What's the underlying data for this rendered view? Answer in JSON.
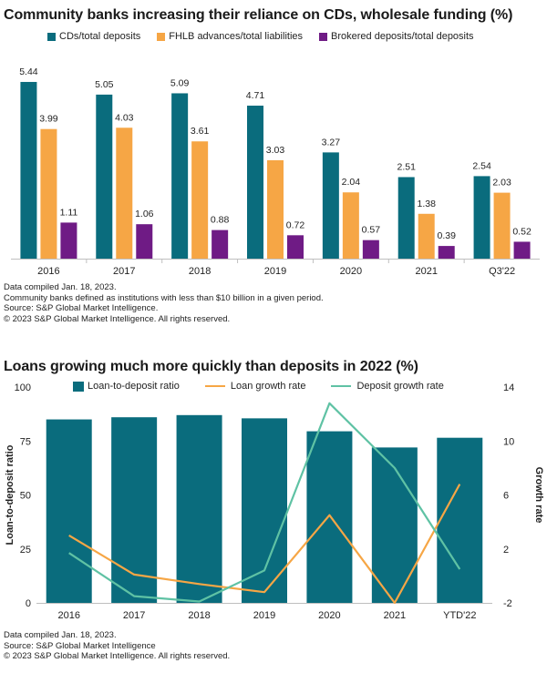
{
  "colors": {
    "teal": "#0a6c7d",
    "orange": "#f6a645",
    "purple": "#6f1b85",
    "green": "#5fc2a4",
    "axis": "#bfbfbf",
    "text": "#222222"
  },
  "chart1": {
    "title": "Community banks increasing their reliance on CDs, wholesale funding (%)",
    "legend": [
      "CDs/total deposits",
      "FHLB advances/total liabilities",
      "Brokered deposits/total deposits"
    ],
    "notes": [
      "Data compiled Jan. 18, 2023.",
      "Community banks defined as institutions with less than $10 billion in a given period.",
      "Source: S&P Global Market Intelligence.",
      "© 2023 S&P Global Market Intelligence. All rights reserved."
    ]
  },
  "chart2": {
    "title": "Loans growing much more quickly than deposits in 2022 (%)",
    "legend": [
      "Loan-to-deposit ratio",
      "Loan growth rate",
      "Deposit growth rate"
    ],
    "notes": [
      "Data compiled Jan. 18, 2023.",
      "Source: S&P Global Market Intelligence",
      "© 2023 S&P Global Market Intelligence. All rights reserved."
    ]
  },
  "chart_data": [
    {
      "type": "bar",
      "title": "Community banks increasing their reliance on CDs, wholesale funding (%)",
      "categories": [
        "2016",
        "2017",
        "2018",
        "2019",
        "2020",
        "2021",
        "Q3'22"
      ],
      "series": [
        {
          "name": "CDs/total deposits",
          "values": [
            5.44,
            5.05,
            5.09,
            4.71,
            3.27,
            2.51,
            2.54
          ],
          "labels": [
            "5.44",
            "5.05",
            "5.09",
            "4.71",
            "3.27",
            "2.51",
            "2.54"
          ]
        },
        {
          "name": "FHLB advances/total liabilities",
          "values": [
            3.99,
            4.03,
            3.61,
            3.03,
            2.04,
            1.38,
            2.03
          ],
          "labels": [
            "3.99",
            "4.03",
            "3.61",
            "3.03",
            "2.04",
            "1.38",
            "2.03"
          ]
        },
        {
          "name": "Brokered deposits/total deposits",
          "values": [
            1.11,
            1.06,
            0.88,
            0.72,
            0.57,
            0.39,
            0.52
          ],
          "labels": [
            "1.11",
            "1.06",
            "0.88",
            "0.72",
            "0.57",
            "0.39",
            "0.52"
          ]
        }
      ],
      "ylim": [
        0,
        6
      ],
      "xlabel": "",
      "ylabel": "",
      "legend_position": "top"
    },
    {
      "type": "bar+line",
      "title": "Loans growing much more quickly than deposits in 2022 (%)",
      "categories": [
        "2016",
        "2017",
        "2018",
        "2019",
        "2020",
        "2021",
        "YTD'22"
      ],
      "bars": {
        "name": "Loan-to-deposit ratio",
        "values": [
          85,
          86,
          87,
          85.5,
          79.5,
          72,
          76.5
        ],
        "axis": "left"
      },
      "lines": [
        {
          "name": "Loan growth rate",
          "values": [
            3.0,
            0.1,
            -0.6,
            -1.2,
            4.5,
            -2.0,
            6.8
          ],
          "axis": "right"
        },
        {
          "name": "Deposit growth rate",
          "values": [
            1.7,
            -1.5,
            -1.9,
            0.4,
            12.8,
            8.0,
            0.5
          ],
          "axis": "right"
        }
      ],
      "ylim_left": [
        0,
        100
      ],
      "yticks_left": [
        "0",
        "25",
        "50",
        "75",
        "100"
      ],
      "ylim_right": [
        -2,
        14
      ],
      "yticks_right": [
        "-2",
        "2",
        "6",
        "10",
        "14"
      ],
      "ylabel": "Loan-to-deposit ratio",
      "ylabel_right": "Growth rate",
      "legend_position": "top"
    }
  ]
}
